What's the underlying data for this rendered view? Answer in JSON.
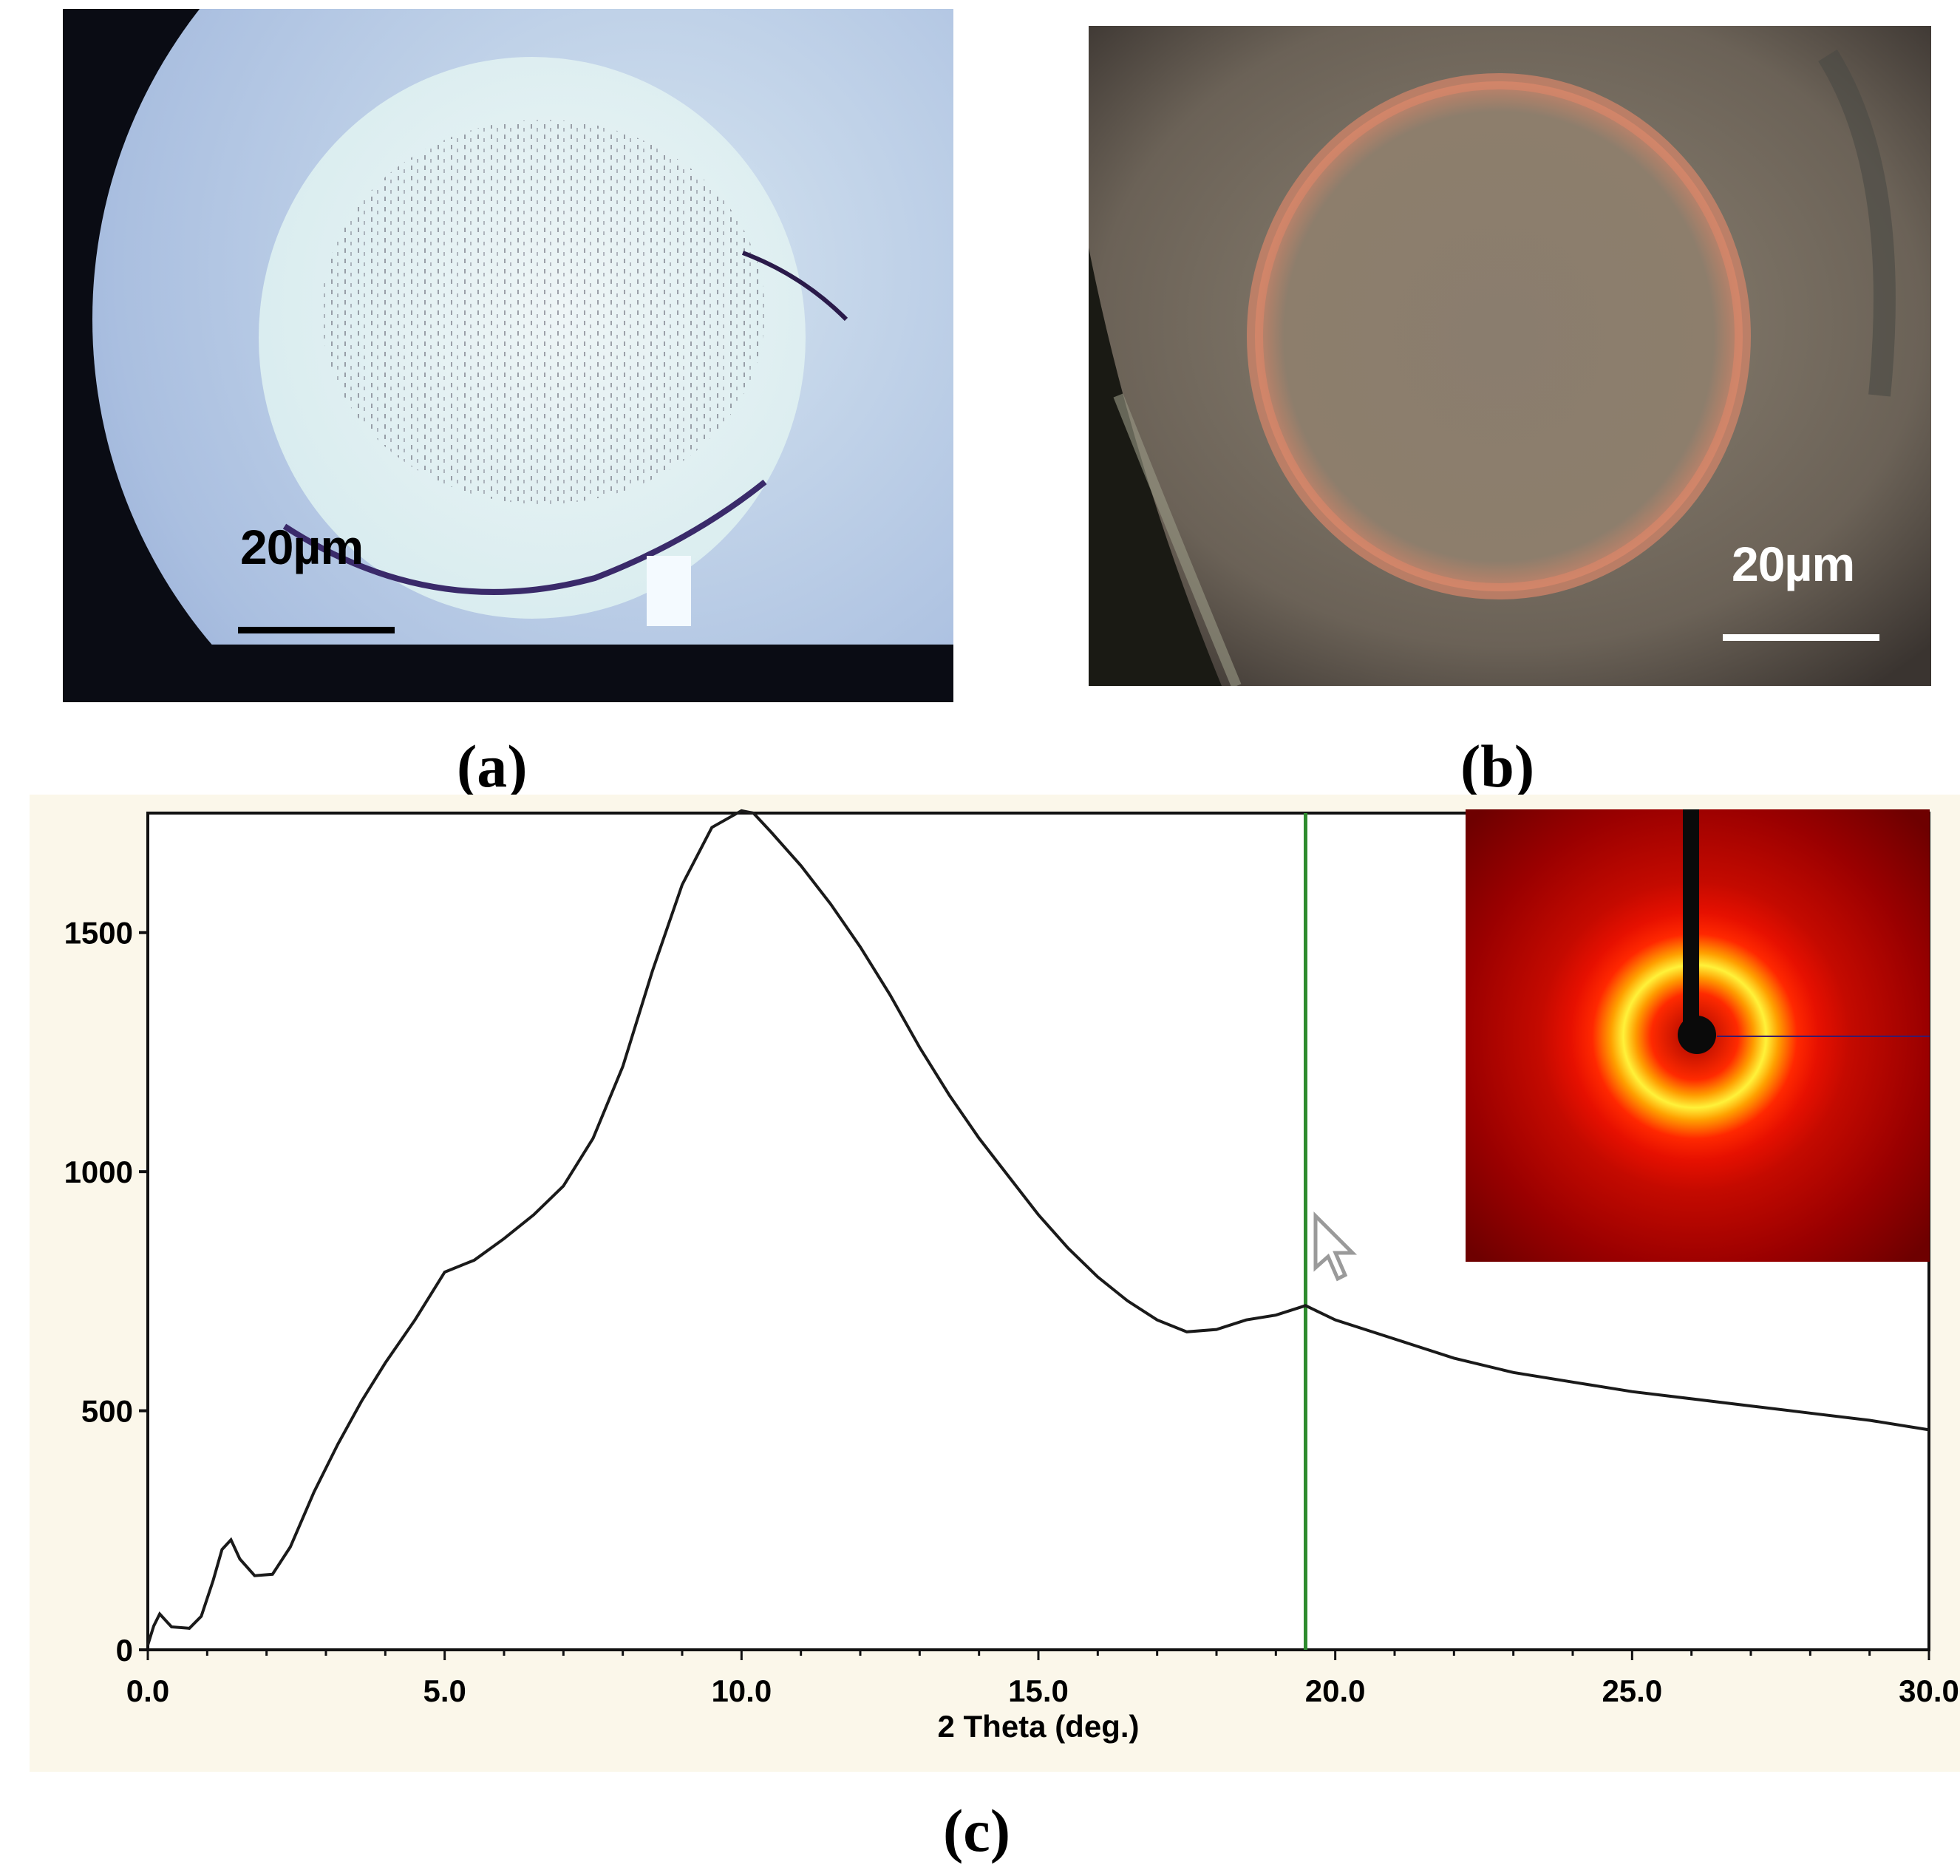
{
  "panels": {
    "a": {
      "label": "(a)",
      "scale_bar_text": "20µm"
    },
    "b": {
      "label": "(b)",
      "scale_bar_text": "20µm"
    },
    "c": {
      "label": "(c)"
    }
  },
  "colors": {
    "curve": "#1a1a1a",
    "cursor_line": "#2e8b2e",
    "plot_bg": "#ffffff",
    "panel_bg": "#fbf7ea"
  },
  "chart_data": {
    "type": "line",
    "title": "",
    "xlabel": "2 Theta (deg.)",
    "ylabel": "",
    "xlim": [
      0,
      30
    ],
    "ylim": [
      0,
      1750
    ],
    "x_ticks": [
      "0.0",
      "5.0",
      "10.0",
      "15.0",
      "20.0",
      "25.0",
      "30.0"
    ],
    "y_ticks": [
      "0",
      "500",
      "1000",
      "1500"
    ],
    "cursor_x": 19.5,
    "grid": false,
    "series": [
      {
        "x": [
          0.0,
          0.1,
          0.2,
          0.4,
          0.7,
          0.9,
          1.1,
          1.25,
          1.4,
          1.55,
          1.8,
          2.1,
          2.4,
          2.8,
          3.2,
          3.6,
          4.0,
          4.5,
          5.0,
          5.5,
          6.0,
          6.5,
          7.0,
          7.5,
          8.0,
          8.5,
          9.0,
          9.5,
          10.0,
          10.2,
          10.5,
          11.0,
          11.5,
          12.0,
          12.5,
          13.0,
          13.5,
          14.0,
          14.5,
          15.0,
          15.5,
          16.0,
          16.5,
          17.0,
          17.5,
          18.0,
          18.5,
          19.0,
          19.5,
          20.0,
          21.0,
          22.0,
          23.0,
          24.0,
          25.0,
          26.0,
          27.0,
          28.0,
          29.0,
          30.0
        ],
        "y": [
          10,
          50,
          75,
          48,
          45,
          70,
          145,
          210,
          230,
          190,
          155,
          158,
          215,
          330,
          430,
          520,
          600,
          690,
          790,
          815,
          860,
          910,
          970,
          1070,
          1220,
          1420,
          1600,
          1720,
          1755,
          1750,
          1710,
          1640,
          1560,
          1470,
          1370,
          1260,
          1160,
          1070,
          990,
          910,
          840,
          780,
          730,
          690,
          665,
          670,
          690,
          700,
          720,
          690,
          650,
          610,
          580,
          560,
          540,
          525,
          510,
          495,
          480,
          460
        ]
      }
    ]
  }
}
